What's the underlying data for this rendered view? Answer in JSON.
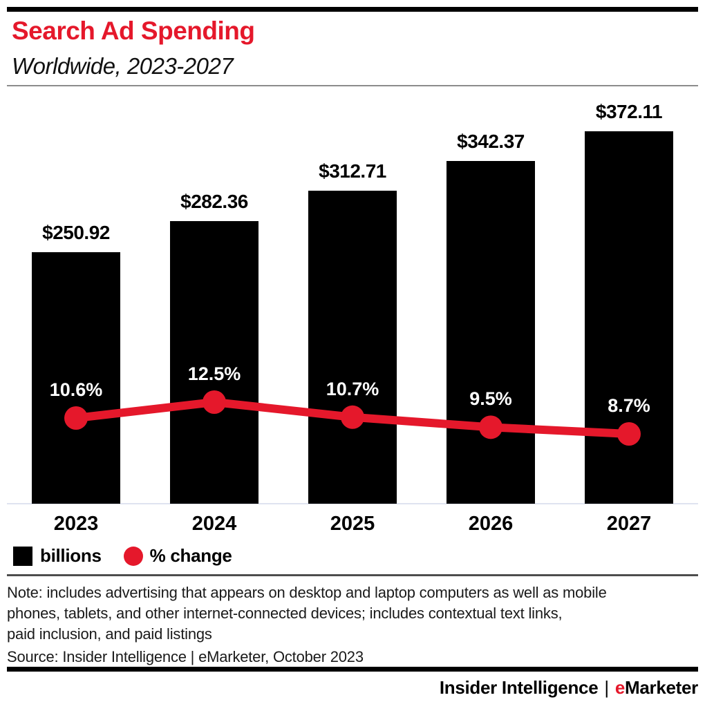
{
  "header": {
    "title": "Search Ad Spending",
    "subtitle": "Worldwide, 2023-2027"
  },
  "chart_data": {
    "type": "bar",
    "title": "Search Ad Spending",
    "subtitle": "Worldwide, 2023-2027",
    "categories": [
      "2023",
      "2024",
      "2025",
      "2026",
      "2027"
    ],
    "series": [
      {
        "name": "billions",
        "type": "bar",
        "values": [
          250.92,
          282.36,
          312.71,
          342.37,
          372.11
        ],
        "labels": [
          "$250.92",
          "$282.36",
          "$312.71",
          "$342.37",
          "$372.11"
        ],
        "color": "#000000"
      },
      {
        "name": "% change",
        "type": "line",
        "values": [
          10.6,
          12.5,
          10.7,
          9.5,
          8.7
        ],
        "labels": [
          "10.6%",
          "12.5%",
          "10.7%",
          "9.5%",
          "8.7%"
        ],
        "color": "#e5182b"
      }
    ],
    "xlabel": "",
    "ylabel": "",
    "grid": false,
    "legend_position": "bottom-left",
    "value_labels_shown": true
  },
  "legend": {
    "items": [
      {
        "label": "billions",
        "swatch": "black-square"
      },
      {
        "label": "% change",
        "swatch": "red-circle"
      }
    ]
  },
  "note": {
    "lines": [
      "Note: includes advertising that appears on desktop and laptop computers as well as mobile",
      "phones, tablets, and other internet-connected devices; includes contextual text links,",
      "paid inclusion, and paid listings"
    ]
  },
  "source": "Source: Insider Intelligence | eMarketer, October 2023",
  "footer": {
    "brand_left": "Insider Intelligence",
    "separator": "|",
    "brand_e": "e",
    "brand_rest": "Marketer"
  },
  "colors": {
    "accent_red": "#e5182b",
    "bar_black": "#000000",
    "axis_line": "#dfe3f0"
  }
}
